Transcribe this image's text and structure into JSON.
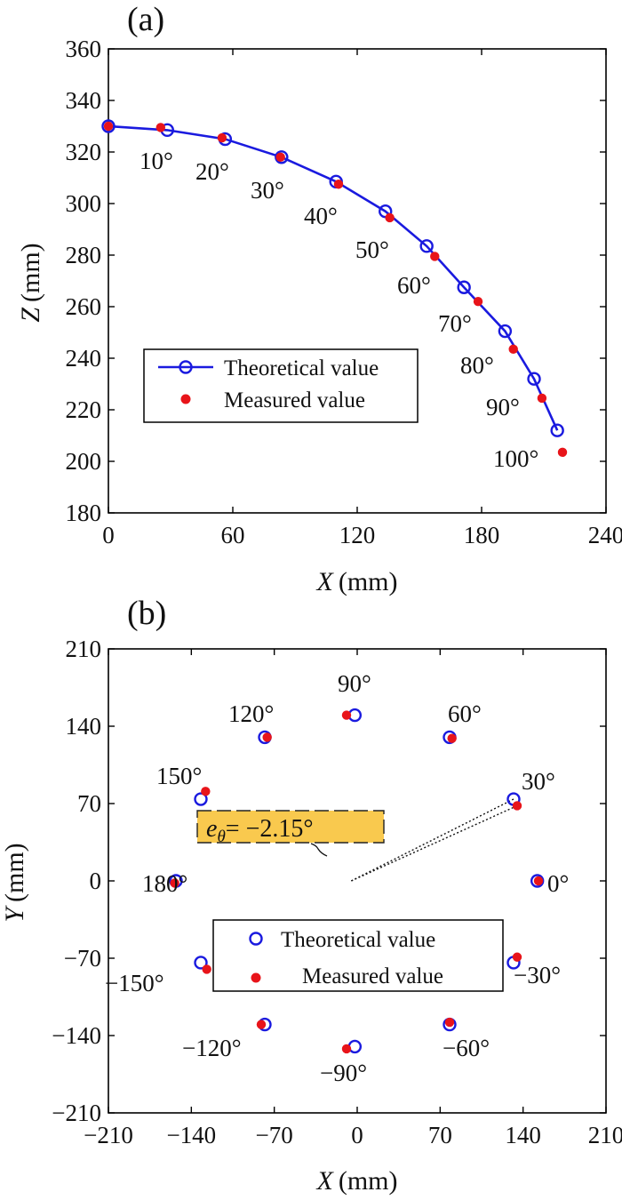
{
  "chart_data": [
    {
      "panel": "(a)",
      "type": "line",
      "xlabel": {
        "var": "X",
        "unit": "(mm)"
      },
      "ylabel": {
        "var": "Z",
        "unit": "(mm)"
      },
      "xlim": [
        0,
        240
      ],
      "ylim": [
        180,
        360
      ],
      "xticks": [
        "0",
        "60",
        "120",
        "180",
        "240"
      ],
      "yticks": [
        "180",
        "200",
        "220",
        "240",
        "260",
        "280",
        "300",
        "320",
        "340",
        "360"
      ],
      "legend_position": "lower-left",
      "series": [
        {
          "name": "Theoretical value",
          "style": "line-open-circle",
          "color": "#1a1adf",
          "x": [
            0,
            28.4,
            56.3,
            83.5,
            109.8,
            133.6,
            153.5,
            171.5,
            191.3,
            205.3,
            216.5
          ],
          "y": [
            330,
            328.5,
            325.0,
            318.0,
            308.5,
            297.0,
            283.5,
            267.5,
            250.5,
            232.0,
            212.0
          ]
        },
        {
          "name": "Measured value",
          "style": "filled-dot",
          "color": "#e8141a",
          "x": [
            0,
            25.2,
            54.8,
            83.0,
            111.0,
            135.7,
            157.4,
            178.3,
            195.3,
            209.1,
            219.0
          ],
          "y": [
            330.0,
            329.5,
            325.5,
            318.0,
            307.5,
            294.5,
            279.5,
            262.0,
            243.5,
            224.5,
            203.5
          ]
        }
      ],
      "point_labels": [
        "10°",
        "20°",
        "30°",
        "40°",
        "50°",
        "60°",
        "70°",
        "80°",
        "90°",
        "100°"
      ]
    },
    {
      "panel": "(b)",
      "type": "scatter",
      "xlabel": {
        "var": "X",
        "unit": "(mm)"
      },
      "ylabel": {
        "var": "Y",
        "unit": "(mm)"
      },
      "xlim": [
        -210,
        210
      ],
      "ylim": [
        -210,
        210
      ],
      "xticks": [
        "−210",
        "−140",
        "−70",
        "0",
        "70",
        "140",
        "210"
      ],
      "yticks": [
        "−210",
        "−140",
        "−70",
        "0",
        "70",
        "140",
        "210"
      ],
      "legend_position": "lower-center",
      "series": [
        {
          "name": "Theoretical value",
          "style": "open-circle",
          "color": "#1a1adf",
          "x": [
            152,
            132,
            78,
            -2,
            -78,
            -132,
            -153,
            -132,
            -78,
            -2,
            78,
            132
          ],
          "y": [
            0,
            74,
            130,
            150,
            130,
            74,
            0,
            -74,
            -130,
            -150,
            -130,
            -74
          ]
        },
        {
          "name": "Measured value",
          "style": "filled-dot",
          "color": "#e8141a",
          "x": [
            153,
            135,
            80,
            -9,
            -76,
            -128,
            -154,
            -127,
            -81,
            -9,
            78,
            135
          ],
          "y": [
            0,
            68,
            129,
            150,
            130,
            81,
            -2,
            -80,
            -130,
            -152,
            -128,
            -69
          ]
        }
      ],
      "point_labels": [
        "0°",
        "30°",
        "60°",
        "90°",
        "120°",
        "150°",
        "180°",
        "−150°",
        "−120°",
        "−90°",
        "−60°",
        "−30°"
      ],
      "annotation": {
        "var": "e",
        "sub": "θ",
        "text": "= −2.15°",
        "box_color": "#f9c94e"
      }
    }
  ]
}
